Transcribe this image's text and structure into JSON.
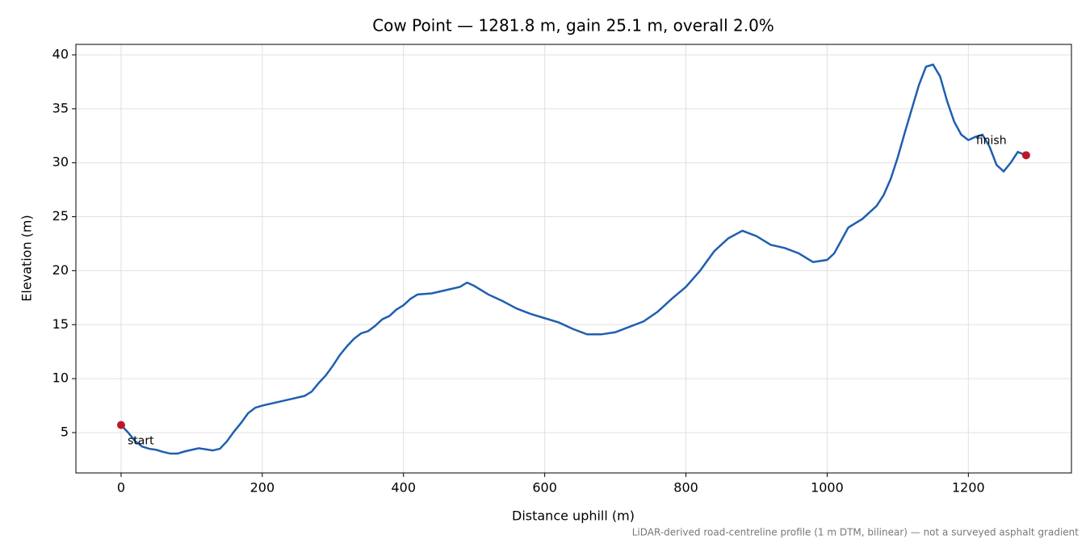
{
  "chart_data": {
    "type": "line",
    "title": "Cow Point — 1281.8 m, gain 25.1 m, overall 2.0%",
    "x_label": "Distance uphill (m)",
    "y_label": "Elevation (m)",
    "footnote": "LiDAR-derived road-centreline profile (1 m DTM, bilinear) — not a surveyed asphalt gradient",
    "xlim": [
      -64,
      1346
    ],
    "ylim": [
      1.26,
      40.97
    ],
    "xticks": [
      0,
      200,
      400,
      600,
      800,
      1000,
      1200
    ],
    "yticks": [
      5,
      10,
      15,
      20,
      25,
      30,
      35,
      40
    ],
    "grid": true,
    "series": [
      {
        "color": "#1f5fb0",
        "x": [
          0,
          10,
          20,
          30,
          40,
          50,
          60,
          70,
          80,
          90,
          100,
          110,
          120,
          130,
          140,
          150,
          160,
          170,
          180,
          190,
          200,
          220,
          240,
          260,
          270,
          280,
          290,
          300,
          310,
          320,
          330,
          340,
          350,
          360,
          370,
          380,
          390,
          400,
          410,
          420,
          440,
          460,
          480,
          490,
          500,
          520,
          540,
          560,
          580,
          600,
          620,
          640,
          660,
          680,
          700,
          720,
          740,
          760,
          780,
          800,
          820,
          840,
          860,
          880,
          900,
          920,
          940,
          960,
          980,
          1000,
          1010,
          1020,
          1030,
          1050,
          1070,
          1080,
          1090,
          1100,
          1110,
          1120,
          1130,
          1140,
          1150,
          1160,
          1170,
          1180,
          1190,
          1200,
          1210,
          1220,
          1230,
          1240,
          1250,
          1260,
          1270,
          1281.8
        ],
        "values": [
          5.7,
          5.0,
          4.2,
          3.7,
          3.5,
          3.4,
          3.2,
          3.05,
          3.05,
          3.25,
          3.4,
          3.55,
          3.45,
          3.35,
          3.5,
          4.2,
          5.1,
          5.9,
          6.8,
          7.3,
          7.5,
          7.8,
          8.1,
          8.4,
          8.8,
          9.6,
          10.3,
          11.2,
          12.2,
          13.0,
          13.7,
          14.2,
          14.4,
          14.9,
          15.5,
          15.8,
          16.4,
          16.8,
          17.4,
          17.8,
          17.9,
          18.2,
          18.5,
          18.9,
          18.6,
          17.8,
          17.2,
          16.5,
          16.0,
          15.6,
          15.2,
          14.6,
          14.1,
          14.1,
          14.3,
          14.8,
          15.3,
          16.2,
          17.4,
          18.5,
          20.0,
          21.8,
          23.0,
          23.7,
          23.2,
          22.4,
          22.1,
          21.6,
          20.8,
          21.0,
          21.6,
          22.8,
          24.0,
          24.8,
          26.0,
          27.0,
          28.5,
          30.5,
          32.8,
          35.0,
          37.2,
          38.9,
          39.1,
          38.0,
          35.7,
          33.8,
          32.6,
          32.1,
          32.4,
          32.6,
          31.5,
          29.8,
          29.2,
          30.0,
          31.0,
          30.7
        ]
      }
    ],
    "markers": {
      "color": "#c0152a",
      "x": [
        0,
        1281.8
      ],
      "values": [
        5.7,
        30.7
      ],
      "labels": [
        "start",
        "finish"
      ]
    }
  }
}
